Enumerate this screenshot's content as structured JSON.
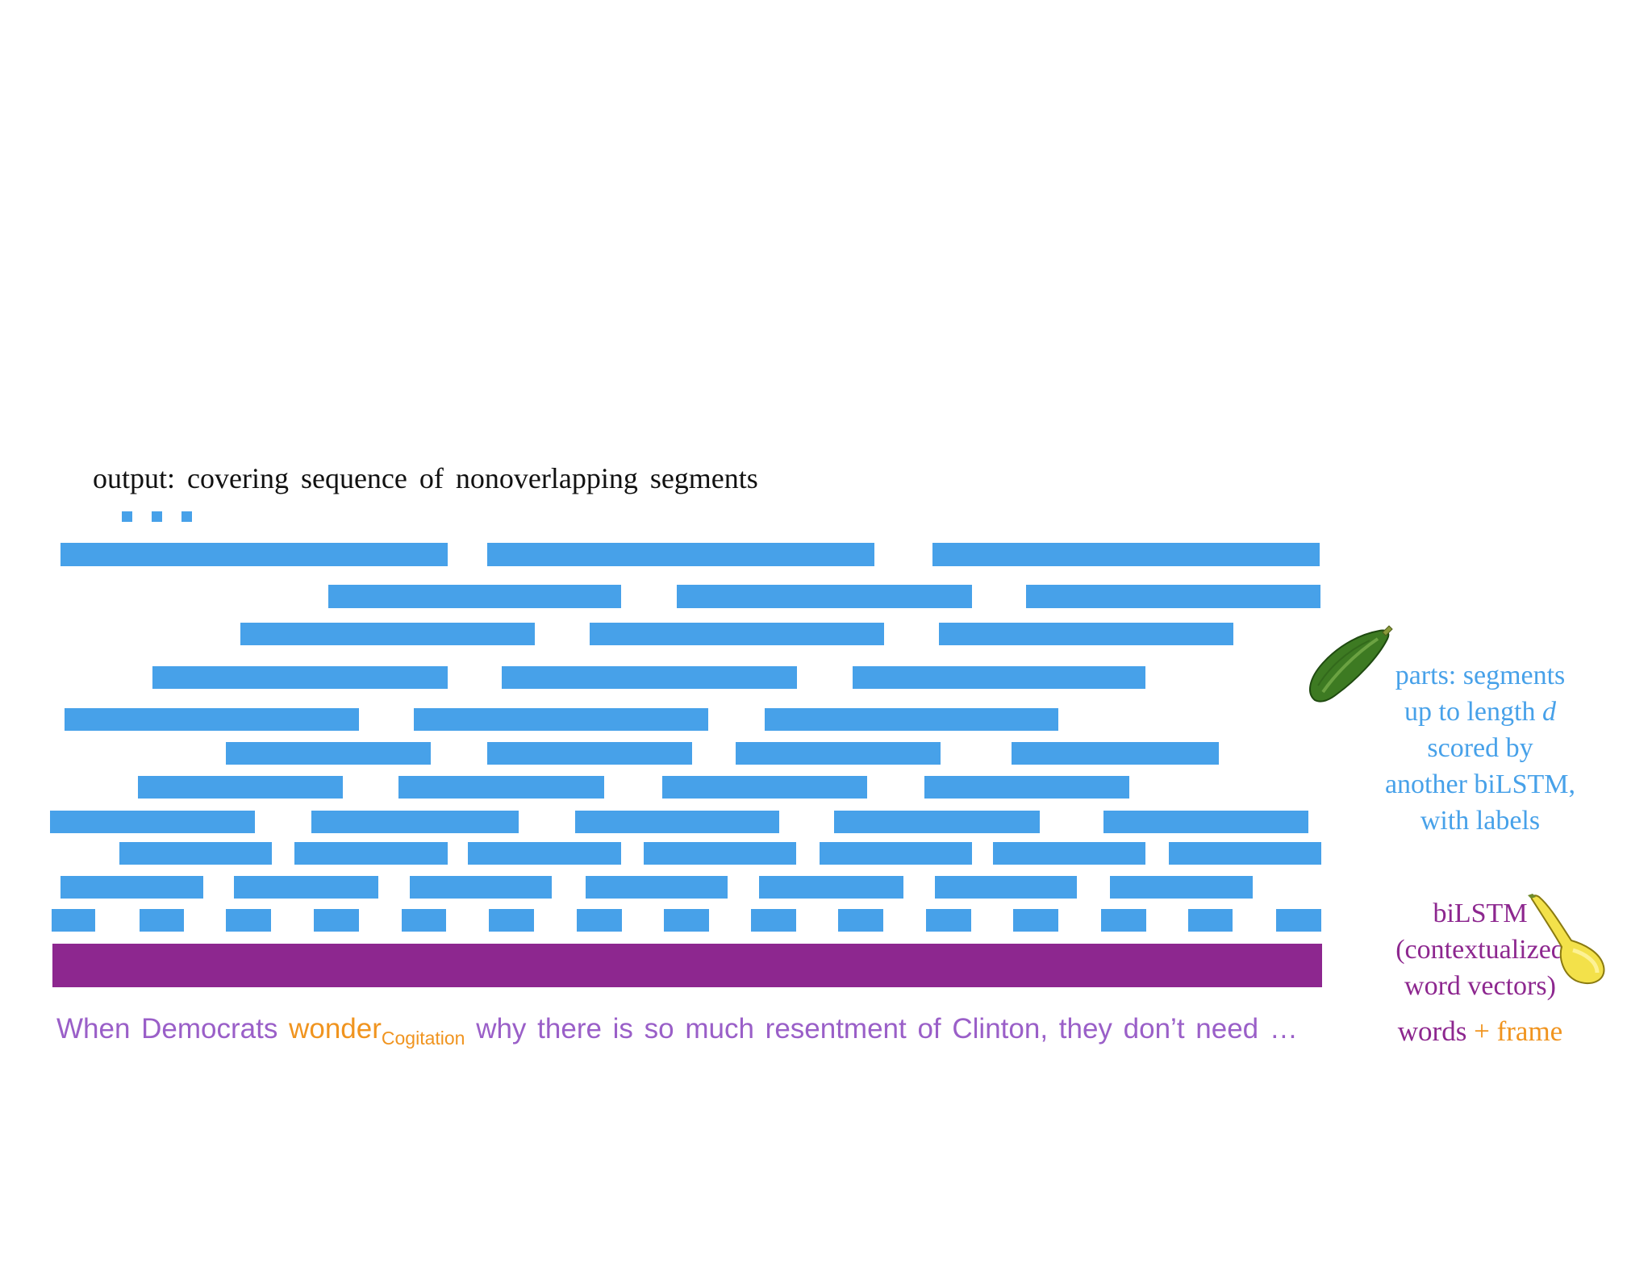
{
  "title": "output:  covering  sequence  of nonoverlapping  segments",
  "ellipsis_dots": 3,
  "colors": {
    "segment": "#47a1e9",
    "bilstm": "#8d278f",
    "words": "#9a5fc8",
    "frame": "#f0941f"
  },
  "segment_rows_count": 11,
  "sentence": {
    "before": "When Democrats ",
    "target": "wonder",
    "frame_label": "Cogitation",
    "after": " why there is so much resentment  of  Clinton, they  don’t need …"
  },
  "parts_label": {
    "line1": "parts:  segments",
    "line2_prefix": "up to length ",
    "line2_var": "d",
    "line3": "scored  by",
    "line4": "another  biLSTM,",
    "line5": "with labels"
  },
  "bilstm_label": {
    "line1": "biLSTM",
    "line2": "(contextualized",
    "line3": "word vectors)"
  },
  "legend": {
    "words": "words",
    "plus": "+",
    "frame": "frame"
  },
  "icons": [
    "zucchini-icon",
    "yellow-squash-icon"
  ]
}
